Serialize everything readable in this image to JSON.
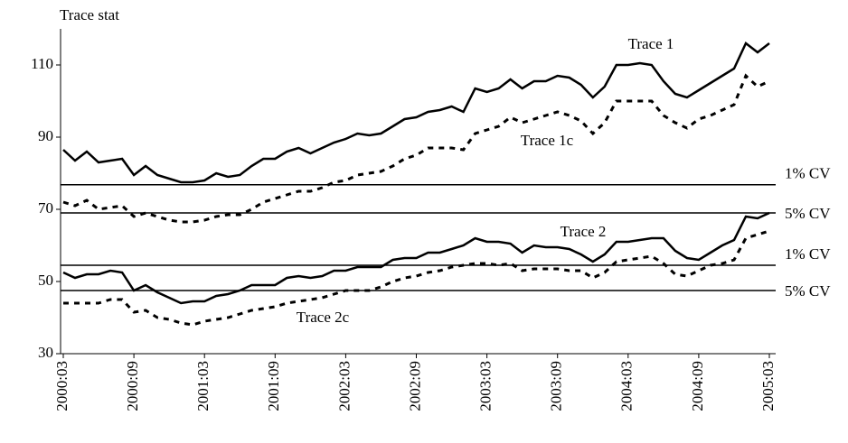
{
  "chart_data": {
    "type": "line",
    "y_label": "Trace stat",
    "categories": [
      "2000:03",
      null,
      null,
      null,
      null,
      null,
      "2000:09",
      null,
      null,
      null,
      null,
      null,
      "2001:03",
      null,
      null,
      null,
      null,
      null,
      "2001:09",
      null,
      null,
      null,
      null,
      null,
      "2002:03",
      null,
      null,
      null,
      null,
      null,
      "2002:09",
      null,
      null,
      null,
      null,
      null,
      "2003:03",
      null,
      null,
      null,
      null,
      null,
      "2003:09",
      null,
      null,
      null,
      null,
      null,
      "2004:03",
      null,
      null,
      null,
      null,
      null,
      "2004:09",
      null,
      null,
      null,
      null,
      null,
      "2005:03"
    ],
    "series": [
      {
        "name": "Trace 1",
        "color": "#000000",
        "style": "solid",
        "values": [
          86.5,
          83.5,
          86,
          83,
          83.5,
          84,
          79.5,
          82,
          79.5,
          78.5,
          77.5,
          77.5,
          78,
          80,
          79,
          79.5,
          82,
          84,
          84,
          86,
          87,
          85.5,
          87,
          88.5,
          89.5,
          91,
          90.5,
          91,
          93,
          95,
          95.5,
          97,
          97.5,
          98.5,
          97,
          103.5,
          102.5,
          103.5,
          106,
          103.5,
          105.5,
          105.5,
          107,
          106.5,
          104.5,
          101,
          104,
          110,
          110,
          110.5,
          110,
          105.5,
          102,
          101,
          103,
          105,
          107,
          109,
          116,
          113.5,
          116
        ]
      },
      {
        "name": "Trace 1c",
        "color": "#000000",
        "style": "dotted",
        "values": [
          72,
          71,
          72.5,
          70,
          70.5,
          71,
          68,
          69,
          68,
          67,
          66.5,
          66.5,
          67,
          68,
          68.5,
          68.5,
          70,
          72,
          73,
          74,
          75,
          75,
          76,
          77.5,
          78,
          79.5,
          80,
          80.5,
          82,
          84,
          85,
          87,
          87,
          87,
          86.5,
          91,
          92,
          93,
          95.5,
          94,
          95,
          96,
          97,
          96,
          94.5,
          91,
          94,
          100,
          100,
          100,
          100,
          96,
          94,
          92.5,
          95,
          96,
          97.5,
          99,
          107,
          104,
          105.5
        ]
      },
      {
        "name": "Trace 2",
        "color": "#000000",
        "style": "solid",
        "values": [
          52.5,
          51,
          52,
          52,
          53,
          52.5,
          47.5,
          49,
          47,
          45.5,
          44,
          44.5,
          44.5,
          46,
          46.5,
          47.5,
          49,
          49,
          49,
          51,
          51.5,
          51,
          51.5,
          53,
          53,
          54,
          54,
          54,
          56,
          56.5,
          56.5,
          58,
          58,
          59,
          60,
          62,
          61,
          61,
          60.5,
          58,
          60,
          59.5,
          59.5,
          59,
          57.5,
          55.5,
          57.5,
          61,
          61,
          61.5,
          62,
          62,
          58.5,
          56.5,
          56,
          58,
          60,
          61.5,
          68,
          67.5,
          69
        ]
      },
      {
        "name": "Trace 2c",
        "color": "#000000",
        "style": "dotted",
        "values": [
          44,
          44,
          44,
          44,
          45,
          45,
          41.5,
          42,
          40,
          39.5,
          38.5,
          38,
          39,
          39.5,
          40,
          41,
          42,
          42.5,
          43,
          44,
          44.5,
          45,
          45.5,
          46.5,
          47.5,
          47.5,
          47.5,
          48.5,
          50,
          51,
          51.5,
          52.5,
          53,
          54,
          54.5,
          55,
          55,
          54.5,
          55,
          53,
          53.5,
          53.5,
          53.5,
          53,
          53,
          51,
          52.5,
          55.5,
          56,
          56.5,
          57,
          55,
          52,
          51.5,
          53,
          54.5,
          55,
          56,
          62,
          63,
          64
        ]
      }
    ],
    "reference_lines": [
      {
        "value": 76.8,
        "label": "1% CV"
      },
      {
        "value": 69,
        "label": "5% CV"
      },
      {
        "value": 54.5,
        "label": "1% CV"
      },
      {
        "value": 47.5,
        "label": "5% CV"
      }
    ],
    "ylim": [
      30,
      120
    ],
    "yticks": [
      30,
      50,
      70,
      90,
      110
    ],
    "grid": false
  }
}
